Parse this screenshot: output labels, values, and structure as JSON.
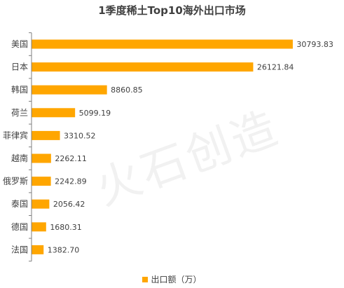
{
  "watermark": "火石创造",
  "colors": {
    "bar": "#FFA600",
    "axis": "#7f7f7f",
    "text": "#404040"
  },
  "chart_data": {
    "type": "bar",
    "orientation": "horizontal",
    "title": "1季度稀土Top10海外出口市场",
    "categories": [
      "美国",
      "日本",
      "韩国",
      "荷兰",
      "菲律宾",
      "越南",
      "俄罗斯",
      "泰国",
      "德国",
      "法国"
    ],
    "series": [
      {
        "name": "出口额（万）",
        "values": [
          30793.83,
          26121.84,
          8860.85,
          5099.19,
          3310.52,
          2262.11,
          2242.89,
          2056.42,
          1680.31,
          1382.7
        ],
        "labels": [
          "30793.83",
          "26121.84",
          "8860.85",
          "5099.19",
          "3310.52",
          "2262.11",
          "2242.89",
          "2056.42",
          "1680.31",
          "1382.70"
        ]
      }
    ],
    "xlim": [
      0,
      32000
    ],
    "grid": false,
    "legend_position": "bottom"
  }
}
